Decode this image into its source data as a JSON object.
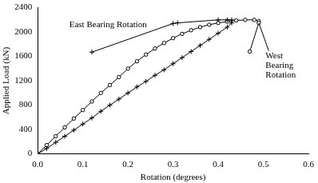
{
  "chart_data": {
    "type": "scatter",
    "x_label": "Rotation (degrees)",
    "y_label": "Applied Load (kN)",
    "xlim": [
      0,
      0.6
    ],
    "xticks": [
      {
        "value": 0,
        "label": "0.0"
      },
      0.1,
      0.2,
      0.3,
      0.4,
      0.5,
      0.6
    ],
    "ylim": [
      0,
      2400
    ],
    "yticks": [
      0,
      400,
      800,
      1200,
      1600,
      2000,
      2400
    ],
    "grid": false,
    "annotations": [
      "East Bearing Rotation",
      "West Bearing Rotation"
    ],
    "series": [
      {
        "name": "East Bearing Rotation",
        "color": "#000000",
        "marker": "plus",
        "line_style": "solid",
        "x": [
          0,
          0.02,
          0.04,
          0.06,
          0.08,
          0.1,
          0.12,
          0.14,
          0.16,
          0.18,
          0.2,
          0.22,
          0.24,
          0.26,
          0.28,
          0.3,
          0.32,
          0.34,
          0.36,
          0.38,
          0.4,
          0.42,
          0.43,
          0.43,
          0.42,
          0.4,
          0.31,
          0.3,
          0.12
        ],
        "values": [
          0,
          90,
          190,
          290,
          390,
          490,
          590,
          700,
          800,
          900,
          1000,
          1100,
          1190,
          1290,
          1380,
          1480,
          1580,
          1680,
          1780,
          1880,
          1980,
          2080,
          2150,
          2200,
          2200,
          2200,
          2150,
          2140,
          1670
        ]
      },
      {
        "name": "West Bearing Rotation",
        "color": "#000000",
        "marker": "circle",
        "line_style": "solid",
        "x": [
          0,
          0.02,
          0.04,
          0.06,
          0.08,
          0.1,
          0.12,
          0.14,
          0.16,
          0.18,
          0.2,
          0.22,
          0.24,
          0.26,
          0.28,
          0.3,
          0.32,
          0.34,
          0.36,
          0.38,
          0.4,
          0.42,
          0.44,
          0.46,
          0.48,
          0.49,
          0.49,
          0.47
        ],
        "values": [
          0,
          145,
          290,
          435,
          580,
          720,
          860,
          1000,
          1130,
          1260,
          1400,
          1520,
          1630,
          1730,
          1820,
          1900,
          1970,
          2030,
          2080,
          2120,
          2150,
          2170,
          2190,
          2200,
          2200,
          2180,
          2150,
          1680
        ]
      }
    ]
  }
}
